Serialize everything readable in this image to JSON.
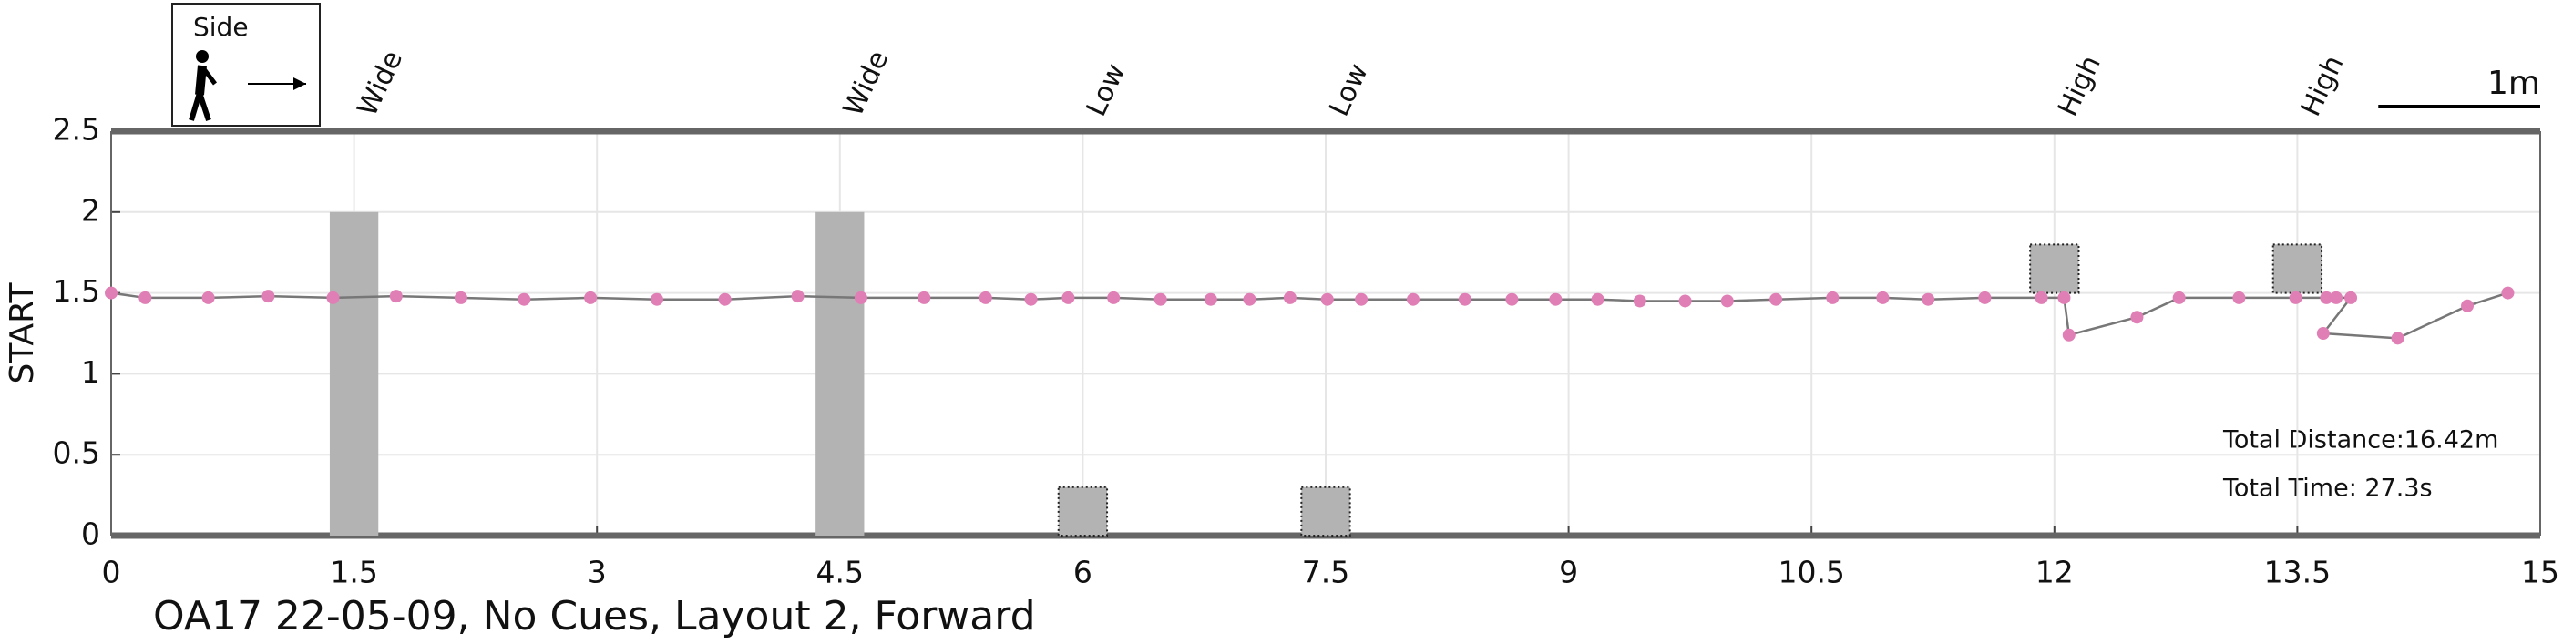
{
  "chart_data": {
    "type": "line",
    "title": "OA17 22-05-09, No Cues, Layout 2, Forward",
    "ylabel": "START",
    "legend_label": "Side",
    "scale_label": "1m",
    "scale_length": 1,
    "annotations": [
      "Total Distance:16.42m",
      "Total Time: 27.3s"
    ],
    "xlim": [
      0,
      15
    ],
    "ylim": [
      0,
      2.5
    ],
    "xticks": [
      0,
      1.5,
      3,
      4.5,
      6,
      7.5,
      9,
      10.5,
      12,
      13.5,
      15
    ],
    "yticks": [
      0,
      0.5,
      1,
      1.5,
      2,
      2.5
    ],
    "grid": true,
    "obstacles": [
      {
        "label": "Wide",
        "x": [
          1.35,
          1.65
        ],
        "y": [
          0,
          2
        ],
        "outline": "none"
      },
      {
        "label": "Wide",
        "x": [
          4.35,
          4.65
        ],
        "y": [
          0,
          2
        ],
        "outline": "none"
      },
      {
        "label": "Low",
        "x": [
          5.85,
          6.15
        ],
        "y": [
          0,
          0.3
        ],
        "outline": "dotted"
      },
      {
        "label": "Low",
        "x": [
          7.35,
          7.65
        ],
        "y": [
          0,
          0.3
        ],
        "outline": "dotted"
      },
      {
        "label": "High",
        "x": [
          11.85,
          12.15
        ],
        "y": [
          1.5,
          1.8
        ],
        "outline": "dotted"
      },
      {
        "label": "High",
        "x": [
          13.35,
          13.65
        ],
        "y": [
          1.5,
          1.8
        ],
        "outline": "dotted"
      }
    ],
    "series": [
      {
        "color": "#e07fb5",
        "line_color": "#777777",
        "x": [
          0,
          0.21,
          0.6,
          0.97,
          1.37,
          1.76,
          2.16,
          2.55,
          2.96,
          3.37,
          3.79,
          4.24,
          4.63,
          5.02,
          5.4,
          5.68,
          5.91,
          6.19,
          6.48,
          6.79,
          7.03,
          7.28,
          7.51,
          7.72,
          8.04,
          8.36,
          8.65,
          8.92,
          9.18,
          9.44,
          9.72,
          9.98,
          10.28,
          10.63,
          10.94,
          11.22,
          11.57,
          11.92,
          12.06,
          12.09,
          12.51,
          12.77,
          13.14,
          13.49,
          13.68,
          13.74,
          13.83,
          13.66,
          14.12,
          14.55,
          14.8
        ],
        "values": [
          1.5,
          1.47,
          1.47,
          1.48,
          1.47,
          1.48,
          1.47,
          1.46,
          1.47,
          1.46,
          1.46,
          1.48,
          1.47,
          1.47,
          1.47,
          1.46,
          1.47,
          1.47,
          1.46,
          1.46,
          1.46,
          1.47,
          1.46,
          1.46,
          1.46,
          1.46,
          1.46,
          1.46,
          1.46,
          1.45,
          1.45,
          1.45,
          1.46,
          1.47,
          1.47,
          1.46,
          1.47,
          1.47,
          1.47,
          1.24,
          1.35,
          1.47,
          1.47,
          1.47,
          1.47,
          1.47,
          1.47,
          1.25,
          1.22,
          1.42,
          1.5
        ]
      }
    ]
  }
}
